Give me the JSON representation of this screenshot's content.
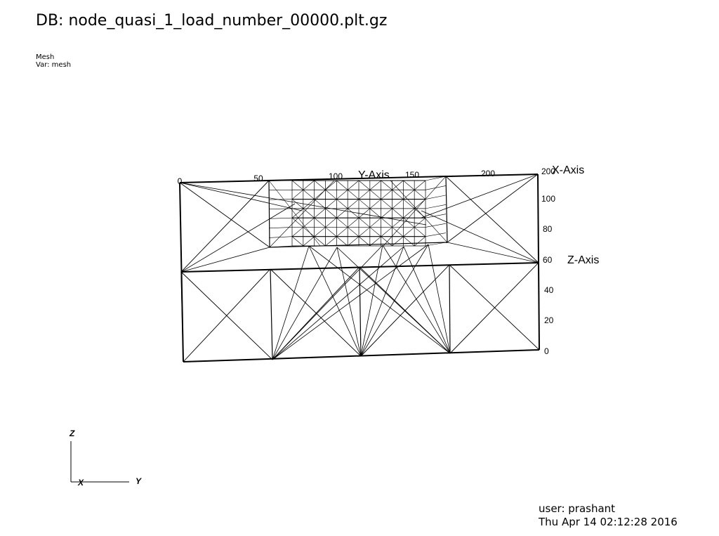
{
  "header": {
    "db_title": "DB: node_quasi_1_load_number_00000.plt.gz",
    "plot_name": "Mesh",
    "plot_var": "Var: mesh"
  },
  "axes": {
    "y_axis_title": "Y-Axis",
    "x_axis_title": "X-Axis",
    "z_axis_title": "Z-Axis",
    "y_ticks": [
      "0",
      "50",
      "100",
      "150",
      "200"
    ],
    "z_ticks": [
      "0",
      "20",
      "40",
      "60",
      "80",
      "100",
      "200"
    ]
  },
  "triad": {
    "z": "Z",
    "x": "X",
    "y": "Y"
  },
  "footer": {
    "user": "user: prashant",
    "date": "Thu Apr 14 02:12:28 2016"
  }
}
